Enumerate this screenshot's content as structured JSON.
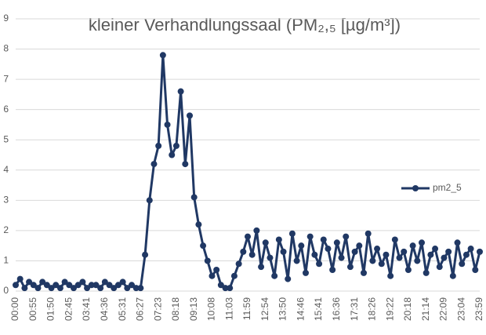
{
  "chart_data": {
    "type": "line",
    "title": "kleiner Verhandlungssaal (PM₂,₅ [µg/m³])",
    "categories": [
      "00:00",
      null,
      null,
      null,
      "00:55",
      null,
      null,
      null,
      "01:50",
      null,
      null,
      null,
      "02:45",
      null,
      null,
      null,
      "03:41",
      null,
      null,
      null,
      "04:36",
      null,
      null,
      null,
      "05:31",
      null,
      null,
      null,
      "06:27",
      null,
      null,
      null,
      "07:23",
      null,
      null,
      null,
      "08:18",
      null,
      null,
      null,
      "09:13",
      null,
      null,
      null,
      "10:08",
      null,
      null,
      null,
      "11:03",
      null,
      null,
      null,
      "11:59",
      null,
      null,
      null,
      "12:54",
      null,
      null,
      null,
      "13:50",
      null,
      null,
      null,
      "14:46",
      null,
      null,
      null,
      "15:41",
      null,
      null,
      null,
      "16:36",
      null,
      null,
      null,
      "17:31",
      null,
      null,
      null,
      "18:26",
      null,
      null,
      null,
      "19:22",
      null,
      null,
      null,
      "20:18",
      null,
      null,
      null,
      "21:14",
      null,
      null,
      null,
      "22:09",
      null,
      null,
      null,
      "23:04",
      null,
      null,
      null,
      "23:59"
    ],
    "series": [
      {
        "name": "pm2_5",
        "color": "#203864",
        "values": [
          0.2,
          0.4,
          0.1,
          0.3,
          0.2,
          0.1,
          0.3,
          0.2,
          0.1,
          0.2,
          0.1,
          0.3,
          0.2,
          0.1,
          0.2,
          0.3,
          0.1,
          0.2,
          0.2,
          0.1,
          0.3,
          0.2,
          0.1,
          0.2,
          0.3,
          0.1,
          0.2,
          0.1,
          0.1,
          1.2,
          3.0,
          4.2,
          4.8,
          7.8,
          5.5,
          4.5,
          4.8,
          6.6,
          4.2,
          5.8,
          3.1,
          2.2,
          1.5,
          1.0,
          0.5,
          0.7,
          0.2,
          0.1,
          0.1,
          0.5,
          0.9,
          1.3,
          1.8,
          1.2,
          2.0,
          0.8,
          1.6,
          1.1,
          0.5,
          1.7,
          1.3,
          0.4,
          1.9,
          1.0,
          1.5,
          0.6,
          1.8,
          1.2,
          0.9,
          1.7,
          1.4,
          0.7,
          1.6,
          1.1,
          1.8,
          0.8,
          1.3,
          1.5,
          0.6,
          1.9,
          1.0,
          1.4,
          0.9,
          1.2,
          0.5,
          1.7,
          1.1,
          1.3,
          0.7,
          1.5,
          1.0,
          1.6,
          0.6,
          1.2,
          1.4,
          0.8,
          1.1,
          1.3,
          0.5,
          1.6,
          0.9,
          1.2,
          1.4,
          0.7,
          1.3
        ]
      }
    ],
    "ylim": [
      0,
      9
    ],
    "yticks": [
      0,
      1,
      2,
      3,
      4,
      5,
      6,
      7,
      8,
      9
    ],
    "grid": true,
    "legend": "right"
  }
}
